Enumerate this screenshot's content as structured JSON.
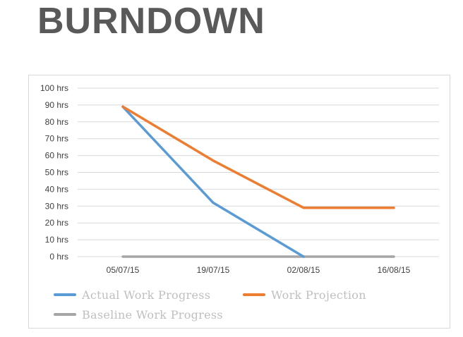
{
  "page": {
    "title": "BURNDOWN"
  },
  "chart_data": {
    "type": "line",
    "categories": [
      "05/07/15",
      "19/07/15",
      "02/08/15",
      "16/08/15"
    ],
    "y_tick_labels": [
      "0 hrs",
      "10 hrs",
      "20 hrs",
      "30 hrs",
      "40 hrs",
      "50 hrs",
      "60 hrs",
      "70 hrs",
      "80 hrs",
      "90 hrs",
      "100 hrs"
    ],
    "ylim": [
      0,
      100
    ],
    "y_unit": "hrs",
    "grid": true,
    "legend_position": "bottom-left",
    "title": "",
    "xlabel": "",
    "ylabel": "",
    "series": [
      {
        "name": "Actual Work Progress",
        "color": "#5b9bd5",
        "values": [
          89,
          32,
          0,
          null
        ]
      },
      {
        "name": "Work Projection",
        "color": "#ed7d31",
        "values": [
          89,
          57,
          29,
          29
        ]
      },
      {
        "name": "Baseline Work Progress",
        "color": "#a5a5a5",
        "values": [
          0,
          0,
          0,
          0
        ]
      }
    ]
  }
}
